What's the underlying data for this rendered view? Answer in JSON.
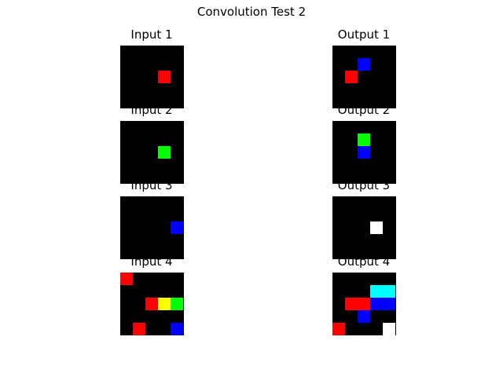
{
  "title": "Convolution Test 2",
  "panels": [
    {
      "label": "Input 1",
      "cells": [
        [
          3,
          2,
          "#ff0000"
        ]
      ]
    },
    {
      "label": "Output 1",
      "cells": [
        [
          2,
          1,
          "#0000ff"
        ],
        [
          1,
          2,
          "#ff0000"
        ]
      ]
    },
    {
      "label": "Input 2",
      "cells": [
        [
          3,
          2,
          "#00ff00"
        ]
      ]
    },
    {
      "label": "Output 2",
      "cells": [
        [
          2,
          1,
          "#00ff00"
        ],
        [
          2,
          2,
          "#0000ff"
        ]
      ]
    },
    {
      "label": "Input 3",
      "cells": [
        [
          4,
          2,
          "#0000ff"
        ]
      ]
    },
    {
      "label": "Output 3",
      "cells": [
        [
          3,
          2,
          "#ffffff"
        ]
      ]
    },
    {
      "label": "Input 4",
      "cells": [
        [
          0,
          0,
          "#ff0000"
        ],
        [
          2,
          2,
          "#ff0000"
        ],
        [
          3,
          2,
          "#ffff00"
        ],
        [
          4,
          2,
          "#00ff00"
        ],
        [
          1,
          4,
          "#ff0000"
        ],
        [
          4,
          4,
          "#0000ff"
        ]
      ]
    },
    {
      "label": "Output 4",
      "cells": [
        [
          3,
          1,
          "#00ffff"
        ],
        [
          4,
          1,
          "#00ffff"
        ],
        [
          1,
          2,
          "#ff0000"
        ],
        [
          2,
          2,
          "#ff0000"
        ],
        [
          3,
          2,
          "#0000ff"
        ],
        [
          4,
          2,
          "#0000ff"
        ],
        [
          2,
          3,
          "#0000ff"
        ],
        [
          0,
          4,
          "#ff0000"
        ],
        [
          4,
          4,
          "#ffffff"
        ]
      ]
    }
  ]
}
